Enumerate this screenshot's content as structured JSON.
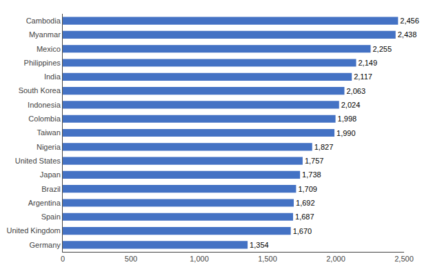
{
  "chart_data": {
    "type": "bar",
    "orientation": "horizontal",
    "categories": [
      "Cambodia",
      "Myanmar",
      "Mexico",
      "Philippines",
      "India",
      "South Korea",
      "Indonesia",
      "Colombia",
      "Taiwan",
      "Nigeria",
      "United States",
      "Japan",
      "Brazil",
      "Argentina",
      "Spain",
      "United Kingdom",
      "Germany"
    ],
    "values": [
      2456,
      2438,
      2255,
      2149,
      2117,
      2063,
      2024,
      1998,
      1990,
      1827,
      1757,
      1738,
      1709,
      1692,
      1687,
      1670,
      1354
    ],
    "value_labels": [
      "2,456",
      "2,438",
      "2,255",
      "2,149",
      "2,117",
      "2,063",
      "2,024",
      "1,998",
      "1,990",
      "1,827",
      "1,757",
      "1,738",
      "1,709",
      "1,692",
      "1,687",
      "1,670",
      "1,354"
    ],
    "data_labels": true,
    "color": "#4472c4",
    "xlim": [
      0,
      2500
    ],
    "xticks": [
      0,
      500,
      {
        "value": 1000,
        "label": "1,000"
      },
      {
        "value": 1500,
        "label": "1,500"
      },
      {
        "value": 2000,
        "label": "2,000"
      },
      {
        "value": 2500,
        "label": "2,500"
      }
    ],
    "grid": false
  }
}
